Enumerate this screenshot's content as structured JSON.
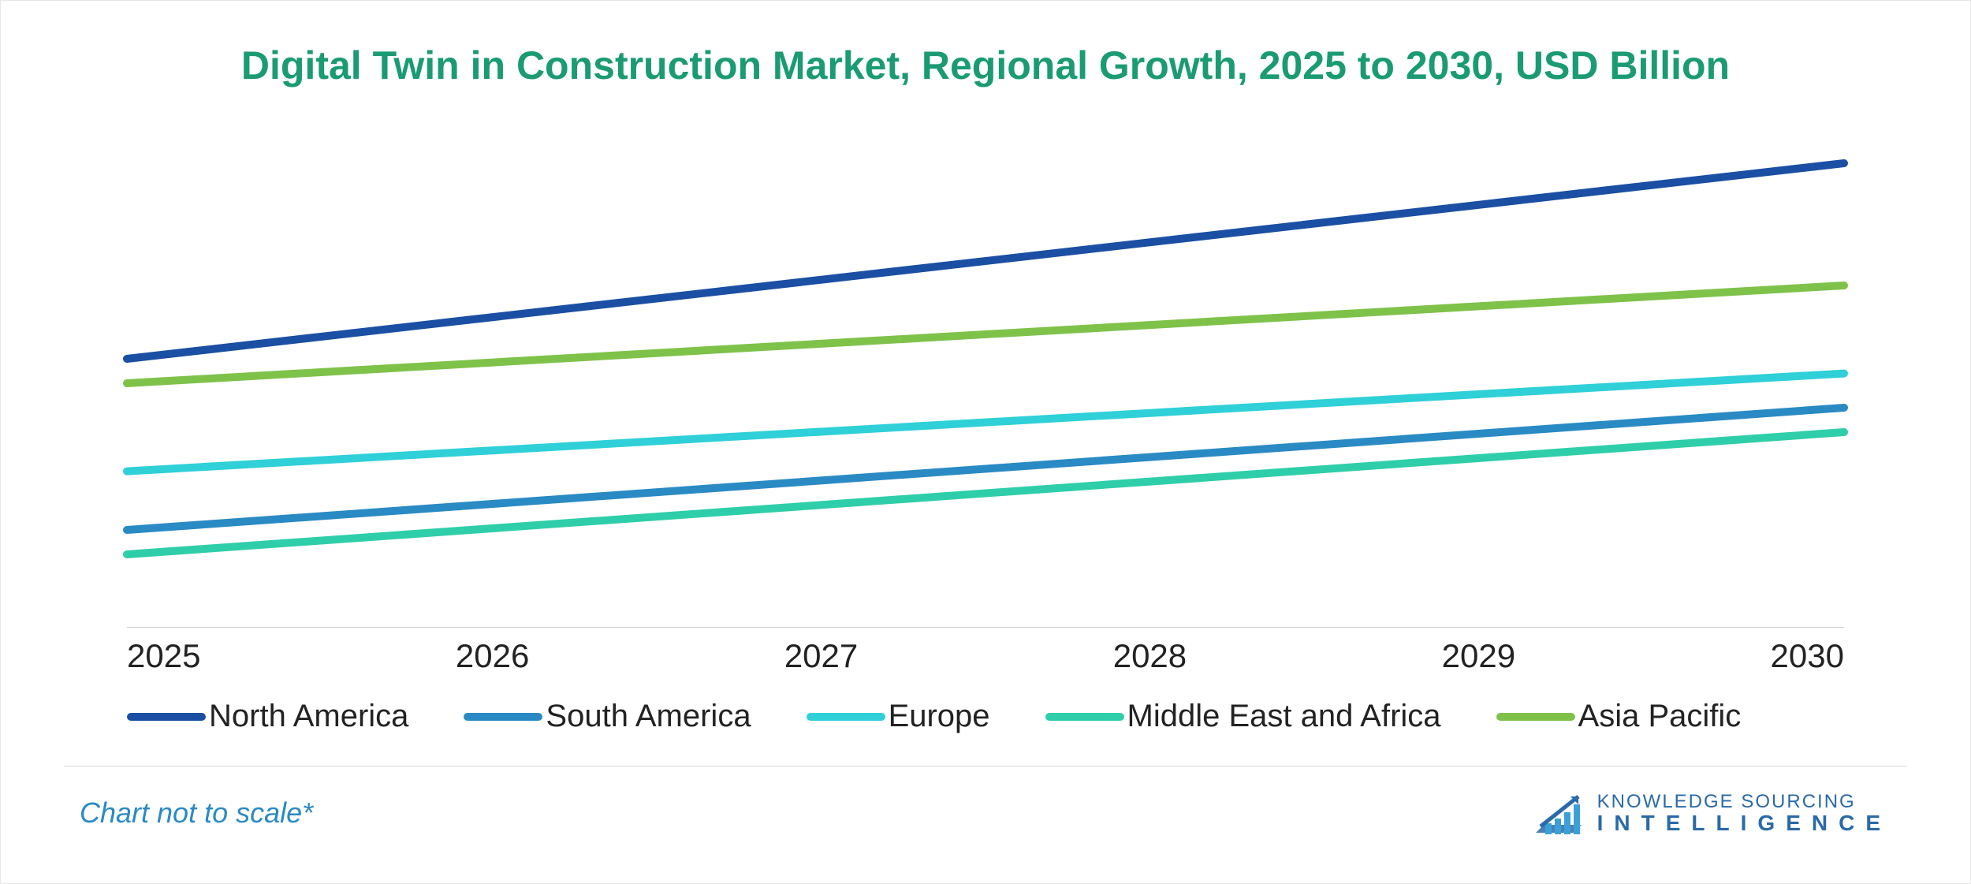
{
  "chart": {
    "type": "line",
    "title": "Digital Twin in Construction Market, Regional Growth, 2025 to 2030, USD Billion",
    "title_color": "#1a9b73",
    "title_fontsize": 50,
    "background_color": "#ffffff",
    "x_categories": [
      "2025",
      "2026",
      "2027",
      "2028",
      "2029",
      "2030"
    ],
    "xlabel_fontsize": 42,
    "xlabel_color": "#222222",
    "ylim": [
      0,
      100
    ],
    "axis_color": "#d0d0d0",
    "line_width": 10,
    "series": [
      {
        "name": "North America",
        "color": "#1a4fa3",
        "values": [
          55,
          63,
          71,
          79,
          87,
          95
        ]
      },
      {
        "name": "South America",
        "color": "#2a8ac4",
        "values": [
          20,
          25,
          30,
          35,
          40,
          45
        ]
      },
      {
        "name": "Europe",
        "color": "#2fd0d8",
        "values": [
          32,
          36,
          40,
          44,
          48,
          52
        ]
      },
      {
        "name": "Middle East and Africa",
        "color": "#2fceaa",
        "values": [
          15,
          20,
          25,
          30,
          35,
          40
        ]
      },
      {
        "name": "Asia Pacific",
        "color": "#7fc24a",
        "values": [
          50,
          54,
          58,
          62,
          66,
          70
        ]
      }
    ],
    "legend_fontsize": 40,
    "legend_swatch_width": 100,
    "legend_swatch_height": 10
  },
  "footnote": {
    "text": "Chart not to scale*",
    "color": "#2a8ac4",
    "fontsize": 36
  },
  "logo": {
    "line1": "KNOWLEDGE SOURCING",
    "line2": "INTELLIGENCE",
    "brand_color": "#2a6aa8",
    "icon_color1": "#2a6aa8",
    "icon_color2": "#3aa0d8"
  }
}
